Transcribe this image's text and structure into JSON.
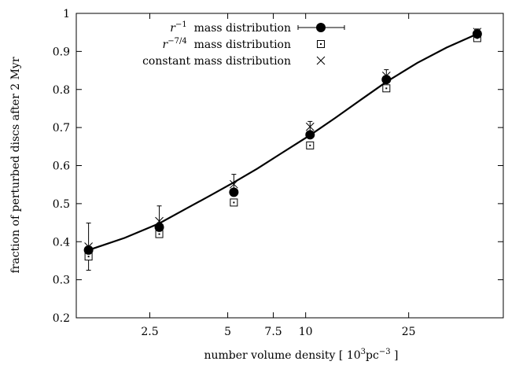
{
  "chart_data": {
    "type": "scatter",
    "xlabel": {
      "pre": "number volume density [ 10",
      "sup1": "3",
      "mid": "pc",
      "sup2": "−3",
      "post": " ]"
    },
    "ylabel": "fraction of perturbed discs after 2 Myr",
    "x_scale": "log",
    "xlim": [
      1.3,
      58
    ],
    "ylim": [
      0.2,
      1.0
    ],
    "x_ticks": [
      2.5,
      5,
      7.5,
      10,
      25
    ],
    "x_tick_labels": [
      "2.5",
      "5",
      "7.5",
      "10",
      "25"
    ],
    "y_ticks": [
      0.2,
      0.3,
      0.4,
      0.5,
      0.6,
      0.7,
      0.8,
      0.9,
      1.0
    ],
    "y_tick_labels": [
      "0.2",
      "0.3",
      "0.4",
      "0.5",
      "0.6",
      "0.7",
      "0.8",
      "0.9",
      "1"
    ],
    "legend_position": "top-left",
    "series": [
      {
        "name": {
          "base": "r",
          "sup": "−1",
          "rest": " mass distribution"
        },
        "marker": "filled-circle",
        "x": [
          1.45,
          2.72,
          5.28,
          10.4,
          20.5,
          46.0
        ],
        "y": [
          0.378,
          0.438,
          0.53,
          0.681,
          0.826,
          0.946
        ]
      },
      {
        "name": {
          "base": "r",
          "sup": "−7/4",
          "rest": " mass distribution"
        },
        "marker": "open-square",
        "x": [
          1.45,
          2.72,
          5.28,
          10.4,
          20.5,
          46.0
        ],
        "y": [
          0.361,
          0.42,
          0.503,
          0.653,
          0.803,
          0.935
        ]
      },
      {
        "name": {
          "base": "constant mass distribution",
          "sup": "",
          "rest": ""
        },
        "marker": "cross",
        "x": [
          1.45,
          2.72,
          5.28,
          10.4,
          20.5,
          46.0
        ],
        "y": [
          0.387,
          0.454,
          0.551,
          0.702,
          0.836,
          0.951
        ],
        "y_err": [
          0.062,
          0.04,
          0.026,
          0.014,
          0.016,
          0.008
        ]
      }
    ],
    "fit_curve": {
      "x": [
        1.45,
        2.0,
        2.72,
        3.5,
        4.3,
        5.28,
        6.5,
        8.0,
        10.4,
        13.0,
        16.5,
        20.5,
        27.0,
        35.0,
        46.0
      ],
      "y": [
        0.378,
        0.41,
        0.448,
        0.489,
        0.522,
        0.556,
        0.592,
        0.631,
        0.68,
        0.725,
        0.775,
        0.82,
        0.87,
        0.91,
        0.946
      ]
    }
  }
}
